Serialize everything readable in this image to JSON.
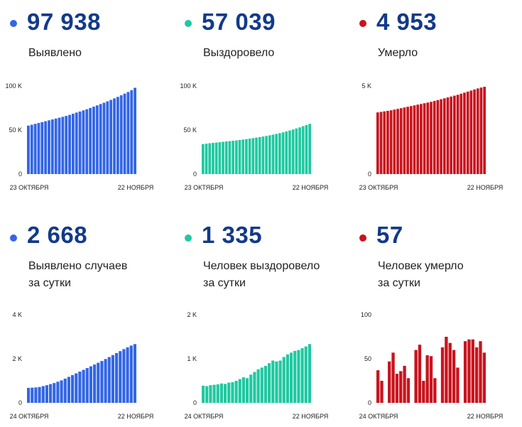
{
  "panels": [
    {
      "value": "97 938",
      "label": "Выявлено",
      "color": "#3366e6",
      "chart_data": {
        "type": "bar",
        "x_start_label": "23 ОКТЯБРЯ",
        "x_end_label": "22 НОЯБРЯ",
        "ylim": [
          0,
          100000
        ],
        "yticks": [
          0,
          50000,
          100000
        ],
        "ytick_labels": [
          "0",
          "50 K",
          "100 K"
        ],
        "values": [
          55000,
          56000,
          57000,
          58000,
          59000,
          60000,
          61000,
          62000,
          63000,
          64000,
          65000,
          66000,
          67200,
          68500,
          69800,
          71000,
          72300,
          73600,
          75000,
          76500,
          78000,
          79500,
          81000,
          82600,
          84200,
          85900,
          87600,
          89400,
          91300,
          93200,
          95200,
          97938
        ]
      }
    },
    {
      "value": "57 039",
      "label": "Выздоровело",
      "color": "#1fc9a1",
      "chart_data": {
        "type": "bar",
        "x_start_label": "23 ОКТЯБРЯ",
        "x_end_label": "22 НОЯБРЯ",
        "ylim": [
          0,
          100000
        ],
        "yticks": [
          0,
          50000,
          100000
        ],
        "ytick_labels": [
          "0",
          "50 K",
          "100 K"
        ],
        "values": [
          34000,
          34500,
          35000,
          35400,
          35800,
          36200,
          36600,
          37000,
          37400,
          37800,
          38200,
          38700,
          39200,
          39700,
          40200,
          40800,
          41400,
          42000,
          42600,
          43300,
          44000,
          44800,
          45600,
          46500,
          47400,
          48400,
          49500,
          50600,
          51800,
          53000,
          54300,
          55700,
          57039
        ]
      }
    },
    {
      "value": "4 953",
      "label": "Умерло",
      "color": "#c8141e",
      "chart_data": {
        "type": "bar",
        "x_start_label": "23 ОКТЯБРЯ",
        "x_end_label": "22 НОЯБРЯ",
        "ylim": [
          0,
          5000
        ],
        "yticks": [
          0,
          5000
        ],
        "ytick_labels": [
          "0",
          "5 K"
        ],
        "values": [
          3500,
          3530,
          3560,
          3590,
          3620,
          3660,
          3700,
          3740,
          3780,
          3820,
          3860,
          3900,
          3940,
          3980,
          4020,
          4060,
          4100,
          4150,
          4200,
          4250,
          4300,
          4350,
          4400,
          4450,
          4500,
          4560,
          4620,
          4680,
          4740,
          4800,
          4860,
          4910,
          4953
        ]
      }
    },
    {
      "value": "2 668",
      "label": "Выявлено случаев\nза сутки",
      "color": "#3366e6",
      "chart_data": {
        "type": "bar",
        "x_start_label": "24 ОКТЯБРЯ",
        "x_end_label": "22 НОЯБРЯ",
        "ylim": [
          0,
          4000
        ],
        "yticks": [
          0,
          2000,
          4000
        ],
        "ytick_labels": [
          "0",
          "2 K",
          "4 K"
        ],
        "values": [
          680,
          690,
          700,
          720,
          760,
          800,
          850,
          900,
          960,
          1020,
          1100,
          1180,
          1260,
          1340,
          1420,
          1500,
          1580,
          1660,
          1740,
          1820,
          1900,
          1990,
          2080,
          2170,
          2260,
          2350,
          2440,
          2520,
          2600,
          2668
        ]
      }
    },
    {
      "value": "1 335",
      "label": "Человек выздоровело\nза сутки",
      "color": "#1fc9a1",
      "chart_data": {
        "type": "bar",
        "x_start_label": "24 ОКТЯБРЯ",
        "x_end_label": "22 НОЯБРЯ",
        "ylim": [
          0,
          2000
        ],
        "yticks": [
          0,
          1000,
          2000
        ],
        "ytick_labels": [
          "0",
          "1 K",
          "2 K"
        ],
        "values": [
          390,
          380,
          400,
          410,
          420,
          440,
          430,
          460,
          470,
          500,
          540,
          580,
          560,
          640,
          700,
          760,
          800,
          840,
          900,
          960,
          940,
          960,
          1040,
          1100,
          1140,
          1180,
          1200,
          1240,
          1280,
          1335
        ]
      }
    },
    {
      "value": "57",
      "label": "Человек умерло\nза сутки",
      "color": "#c8141e",
      "chart_data": {
        "type": "bar",
        "x_start_label": "24 ОКТЯБРЯ",
        "x_end_label": "22 НОЯБРЯ",
        "ylim": [
          0,
          100
        ],
        "yticks": [
          0,
          50,
          100
        ],
        "ytick_labels": [
          "0",
          "50",
          "100"
        ],
        "values": [
          37,
          25,
          0,
          47,
          57,
          33,
          36,
          42,
          28,
          0,
          60,
          66,
          25,
          54,
          53,
          28,
          0,
          63,
          75,
          68,
          60,
          40,
          0,
          70,
          72,
          72,
          63,
          70,
          57
        ]
      }
    }
  ]
}
